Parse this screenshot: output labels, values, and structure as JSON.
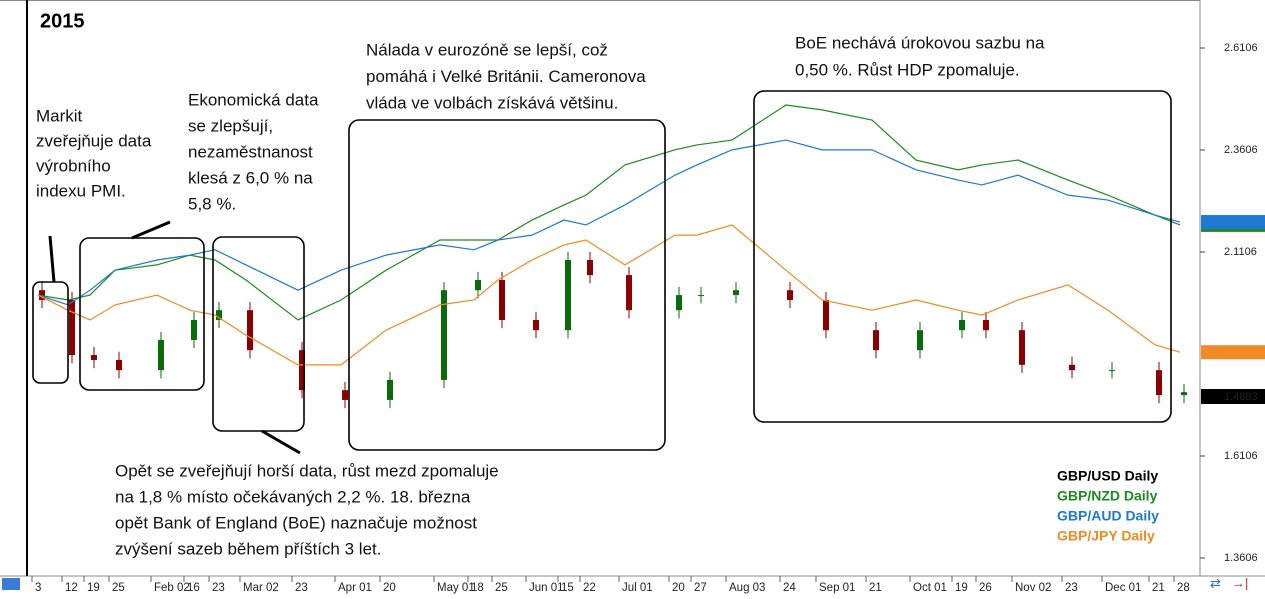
{
  "chart_data": {
    "type": "candlestick",
    "title": "2015",
    "categories": [
      "3",
      "12",
      "19",
      "25",
      "Feb 02",
      "16",
      "23",
      "Mar 02",
      "23",
      "Apr 01",
      "20",
      "May 01",
      "18",
      "25",
      "Jun 01",
      "15",
      "22",
      "Jul 01",
      "20",
      "27",
      "Aug 03",
      "24",
      "Sep 01",
      "21",
      "Oct 01",
      "19",
      "26",
      "Nov 02",
      "23",
      "Dec 01",
      "21",
      "28"
    ],
    "ylim": [
      1.3189,
      2.7283
    ],
    "yticks": [
      2.6106,
      2.3606,
      2.1106,
      1.6106,
      1.3606
    ],
    "last_price": 1.4883,
    "series": [
      {
        "name": "GBP/USD Daily",
        "color": "#000000",
        "up_color": "#0a6b0a",
        "down_color": "#8b0000",
        "open": [
          2.017,
          1.993,
          1.858,
          1.846,
          1.821,
          1.895,
          1.944,
          1.968,
          1.87,
          1.772,
          1.748,
          1.797,
          2.017,
          2.042,
          1.944,
          1.919,
          2.091,
          2.054,
          1.968,
          2.005,
          2.005,
          2.017,
          1.993,
          1.919,
          1.87,
          1.919,
          1.944,
          1.919,
          1.834,
          1.821,
          1.821,
          1.76
        ],
        "high": [
          2.037,
          2.013,
          1.878,
          1.866,
          1.915,
          1.964,
          1.988,
          1.988,
          1.89,
          1.792,
          1.817,
          2.037,
          2.062,
          2.062,
          1.964,
          2.111,
          2.111,
          2.074,
          2.025,
          2.025,
          2.037,
          2.037,
          2.013,
          1.939,
          1.939,
          1.964,
          1.964,
          1.939,
          1.854,
          1.841,
          1.841,
          1.787
        ],
        "low": [
          1.973,
          1.838,
          1.826,
          1.801,
          1.801,
          1.875,
          1.924,
          1.85,
          1.752,
          1.728,
          1.728,
          1.777,
          1.997,
          1.924,
          1.899,
          1.899,
          2.034,
          1.948,
          1.948,
          1.985,
          1.985,
          1.973,
          1.899,
          1.85,
          1.85,
          1.899,
          1.899,
          1.814,
          1.801,
          1.801,
          1.74,
          1.74
        ],
        "close": [
          1.993,
          1.858,
          1.846,
          1.821,
          1.895,
          1.944,
          1.968,
          1.87,
          1.772,
          1.748,
          1.797,
          2.017,
          2.042,
          1.944,
          1.919,
          2.091,
          2.054,
          1.968,
          2.005,
          2.005,
          2.017,
          1.993,
          1.919,
          1.87,
          1.919,
          1.944,
          1.919,
          1.834,
          1.821,
          1.821,
          1.76,
          1.767
        ]
      },
      {
        "name": "GBP/NZD Daily",
        "type": "line",
        "color": "#1f8a1f",
        "values": [
          2.005,
          1.993,
          2.005,
          2.066,
          2.079,
          2.103,
          2.091,
          2.042,
          1.944,
          1.993,
          2.066,
          2.14,
          2.14,
          2.14,
          2.189,
          2.226,
          2.25,
          2.324,
          2.361,
          2.373,
          2.385,
          2.471,
          2.459,
          2.434,
          2.336,
          2.312,
          2.324,
          2.336,
          2.287,
          2.25,
          2.201,
          2.177
        ]
      },
      {
        "name": "GBP/AUD Daily",
        "type": "line",
        "color": "#1f78d1",
        "values": [
          2.005,
          1.981,
          2.017,
          2.066,
          2.091,
          2.103,
          2.116,
          2.079,
          2.017,
          2.066,
          2.103,
          2.128,
          2.116,
          2.14,
          2.152,
          2.189,
          2.177,
          2.226,
          2.299,
          2.324,
          2.361,
          2.385,
          2.361,
          2.361,
          2.312,
          2.287,
          2.275,
          2.299,
          2.25,
          2.238,
          2.201,
          2.184
        ]
      },
      {
        "name": "GBP/JPY Daily",
        "type": "line",
        "color": "#f08a24",
        "values": [
          2.005,
          1.968,
          1.944,
          1.981,
          2.005,
          1.968,
          1.956,
          1.907,
          1.834,
          1.834,
          1.919,
          1.981,
          1.993,
          2.042,
          2.091,
          2.128,
          2.14,
          2.079,
          2.152,
          2.152,
          2.177,
          2.066,
          1.993,
          1.968,
          1.993,
          1.968,
          1.956,
          1.993,
          2.03,
          1.968,
          1.883,
          1.865
        ]
      }
    ],
    "annotations": [
      {
        "lines": [
          "Markit",
          "zveřejňuje data",
          "výrobního",
          "indexu PMI."
        ]
      },
      {
        "lines": [
          "Ekonomická data",
          "se zlepšují,",
          "nezaměstnanost",
          "klesá z 6,0 % na",
          "5,8 %."
        ]
      },
      {
        "lines": [
          "Nálada v eurozóně se lepší, což",
          "pomáhá i Velké Británii. Cameronova",
          "vláda ve volbách získává většinu."
        ]
      },
      {
        "lines": [
          "BoE nechává úrokovou sazbu na",
          "0,50 %. Růst HDP zpomaluje."
        ]
      },
      {
        "lines": [
          "Opět se zveřejňují horší data, růst mezd zpomaluje",
          "na 1,8 % místo očekávaných 2,2 %. 18. března",
          "opět Bank of England (BoE) naznačuje možnost",
          "zvýšení sazeb během příštích 3 let."
        ]
      }
    ]
  }
}
